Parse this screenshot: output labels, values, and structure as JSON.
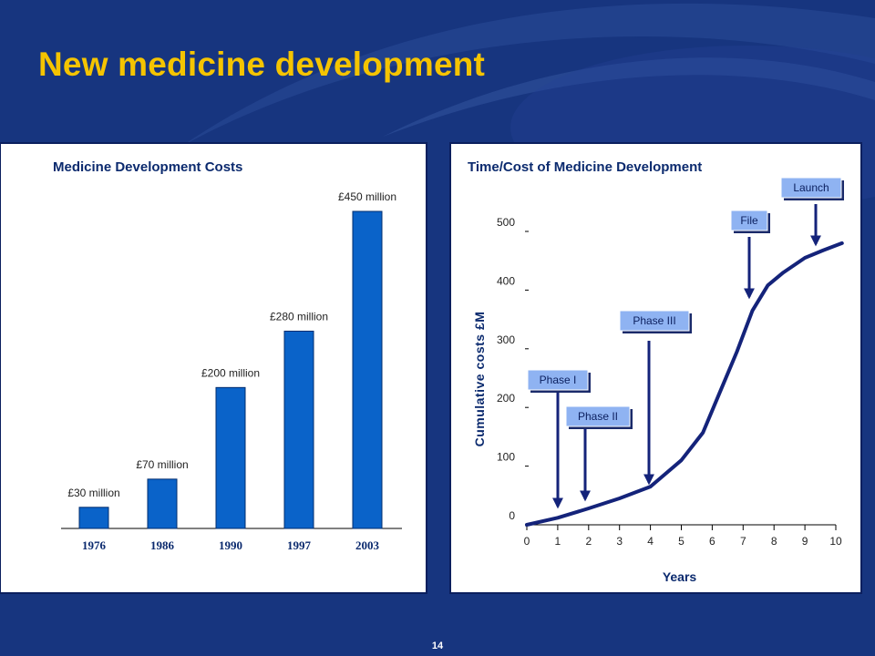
{
  "slide": {
    "title": "New medicine development",
    "page_number": "14"
  },
  "colors": {
    "background": "#17357f",
    "title": "#f5c400",
    "bar": "#0a63c9",
    "curve": "#14237a",
    "phase_box": "#8fb3f2"
  },
  "chart_data": [
    {
      "type": "bar",
      "title": "Medicine Development Costs",
      "categories": [
        "1976",
        "1986",
        "1990",
        "1997",
        "2003"
      ],
      "values": [
        30,
        70,
        200,
        280,
        450
      ],
      "data_labels": [
        "£30 million",
        "£70 million",
        "£200 million",
        "£280 million",
        "£450 million"
      ],
      "xlabel": "",
      "ylabel": "",
      "ylim": [
        0,
        450
      ],
      "grid": false,
      "legend": "none"
    },
    {
      "type": "line",
      "title": "Time/Cost of Medicine Development",
      "xlabel": "Years",
      "ylabel": "Cumulative costs £M",
      "xlim": [
        0,
        10
      ],
      "ylim": [
        0,
        500
      ],
      "x_ticks": [
        "0",
        "1",
        "2",
        "3",
        "4",
        "5",
        "6",
        "7",
        "8",
        "9",
        "10"
      ],
      "y_ticks": [
        "0",
        "100",
        "200",
        "300",
        "400",
        "500"
      ],
      "series": [
        {
          "x": [
            0,
            1,
            2,
            3,
            4,
            5,
            5.7,
            6.2,
            6.8,
            7.3,
            7.8,
            8.3,
            9,
            9.6,
            10.2
          ],
          "y": [
            0,
            12,
            28,
            45,
            65,
            110,
            157,
            220,
            295,
            365,
            408,
            430,
            455,
            468,
            480
          ]
        }
      ],
      "annotations": [
        {
          "label": "Phase I",
          "x": 1
        },
        {
          "label": "Phase II",
          "x": 2
        },
        {
          "label": "Phase III",
          "x": 4
        },
        {
          "label": "File",
          "x": 7.3
        },
        {
          "label": "Launch",
          "x": 9.5
        }
      ],
      "grid": false,
      "legend": "none"
    }
  ]
}
